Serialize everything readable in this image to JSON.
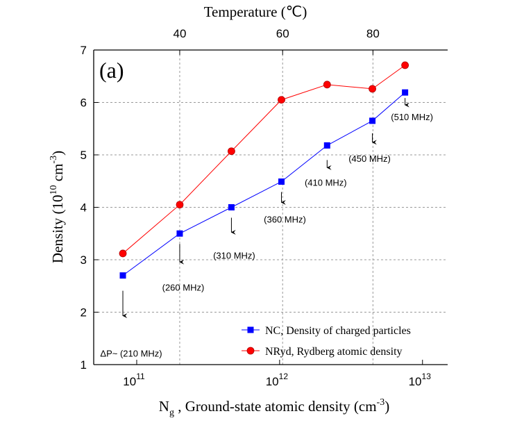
{
  "chart_data": {
    "type": "line",
    "panel_label": "(a)",
    "x_label": [
      "N",
      "g",
      " , Ground-state atomic density (cm",
      "-3",
      ")"
    ],
    "y_label": [
      "Density (10",
      "10",
      " cm",
      "-3",
      ")"
    ],
    "x2_label": "Temperature (℃)",
    "x": [
      80000000000.0,
      200000000000.0,
      460000000000.0,
      1030000000000.0,
      2150000000000.0,
      4460000000000.0,
      7550000000000.0
    ],
    "series": [
      {
        "name": "NC, Density of charged particles",
        "color": "#0000ff",
        "marker": "square",
        "values": [
          2.7,
          3.5,
          4.0,
          4.49,
          5.18,
          5.65,
          6.19
        ]
      },
      {
        "name": "NRyd, Rydberg atomic density",
        "color": "#ff0000",
        "marker": "circle",
        "values": [
          3.12,
          4.05,
          5.07,
          6.05,
          6.34,
          6.26,
          6.71
        ]
      }
    ],
    "annotations": [
      "ΔP~ (210 MHz)",
      "(260 MHz)",
      "(310 MHz)",
      "(360 MHz)",
      "(410 MHz)",
      "(450 MHz)",
      "(510 MHz)"
    ],
    "xlog": true,
    "xlim": [
      50000000000.0,
      15000000000000.0
    ],
    "xticks": [
      {
        "value": 100000000000.0,
        "label": [
          "10",
          "11"
        ]
      },
      {
        "value": 1000000000000.0,
        "label": [
          "10",
          "12"
        ]
      },
      {
        "value": 10000000000000.0,
        "label": [
          "10",
          "13"
        ]
      }
    ],
    "x2ticks": [
      {
        "value": 200000000000.0,
        "label": "40"
      },
      {
        "value": 1050000000000.0,
        "label": "60"
      },
      {
        "value": 4500000000000.0,
        "label": "80"
      }
    ],
    "ylim": [
      1,
      7
    ],
    "yticks": [
      1,
      2,
      3,
      4,
      5,
      6,
      7
    ],
    "grid": true,
    "legend": "lower right"
  }
}
